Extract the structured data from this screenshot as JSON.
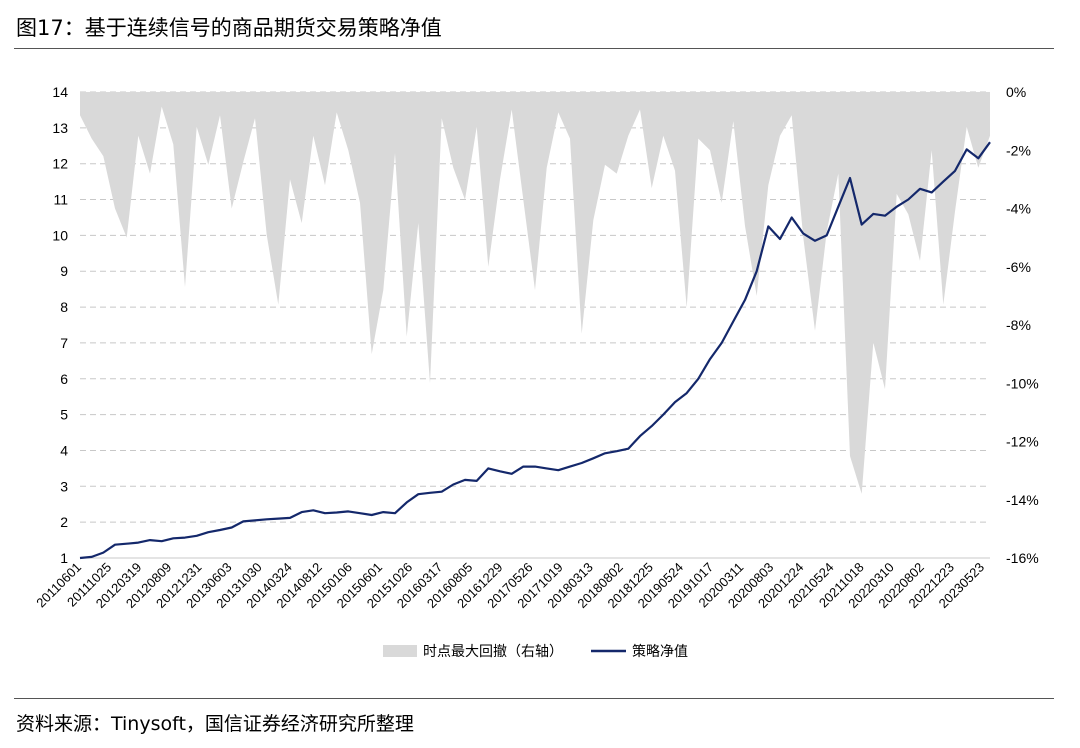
{
  "figure": {
    "title": "图17：基于连续信号的商品期货交易策略净值",
    "source": "资料来源：Tinysoft，国信证券经济研究所整理"
  },
  "chart_data": {
    "type": "line",
    "x_tick_labels": [
      "20110601",
      "20111025",
      "20120319",
      "20120809",
      "20121231",
      "20130603",
      "20131030",
      "20140324",
      "20140812",
      "20150106",
      "20150601",
      "20151026",
      "20160317",
      "20160805",
      "20161229",
      "20170526",
      "20171019",
      "20180313",
      "20180802",
      "20181225",
      "20190524",
      "20191017",
      "20200311",
      "20200803",
      "20201224",
      "20210524",
      "20211018",
      "20220310",
      "20220802",
      "20221223",
      "20230523"
    ],
    "left_axis": {
      "min": 1,
      "max": 14,
      "ticks": [
        "1",
        "2",
        "3",
        "4",
        "5",
        "6",
        "7",
        "8",
        "9",
        "10",
        "11",
        "12",
        "13",
        "14"
      ]
    },
    "right_axis": {
      "min": -16,
      "max": 0,
      "ticks": [
        "0%",
        "-2%",
        "-4%",
        "-6%",
        "-8%",
        "-10%",
        "-12%",
        "-14%",
        "-16%"
      ]
    },
    "grid": true,
    "legend_position": "bottom",
    "colors": {
      "line": "#14286b",
      "area": "#d9d9d9",
      "grid": "#c8c8c8"
    },
    "series": [
      {
        "name": "时点最大回撤（右轴）",
        "type": "area",
        "axis": "right",
        "values": [
          -0.8,
          -1.6,
          -2.2,
          -4.0,
          -5.0,
          -1.5,
          -2.8,
          -0.5,
          -1.8,
          -6.7,
          -1.2,
          -2.5,
          -0.8,
          -4.0,
          -2.4,
          -0.9,
          -4.9,
          -7.3,
          -3.0,
          -4.5,
          -1.5,
          -3.2,
          -0.7,
          -2.0,
          -3.8,
          -9.0,
          -6.8,
          -2.1,
          -8.4,
          -4.5,
          -10.0,
          -0.9,
          -2.6,
          -3.7,
          -1.2,
          -6.0,
          -3.0,
          -0.6,
          -3.7,
          -6.8,
          -2.6,
          -0.7,
          -1.6,
          -8.3,
          -4.4,
          -2.5,
          -2.8,
          -1.5,
          -0.6,
          -3.3,
          -1.5,
          -2.7,
          -7.4,
          -1.6,
          -2.0,
          -3.8,
          -1.0,
          -4.6,
          -7.0,
          -3.2,
          -1.5,
          -0.8,
          -5.0,
          -8.2,
          -4.8,
          -2.8,
          -12.5,
          -13.8,
          -8.6,
          -10.2,
          -3.5,
          -4.2,
          -5.8,
          -2.0,
          -7.3,
          -4.1,
          -1.2,
          -2.6,
          -1.5
        ]
      },
      {
        "name": "策略净值",
        "type": "line",
        "axis": "left",
        "values": [
          1.0,
          1.03,
          1.15,
          1.37,
          1.4,
          1.43,
          1.5,
          1.47,
          1.55,
          1.57,
          1.62,
          1.72,
          1.78,
          1.85,
          2.02,
          2.05,
          2.08,
          2.1,
          2.12,
          2.28,
          2.33,
          2.25,
          2.27,
          2.3,
          2.25,
          2.2,
          2.28,
          2.25,
          2.55,
          2.78,
          2.82,
          2.85,
          3.05,
          3.18,
          3.15,
          3.5,
          3.42,
          3.35,
          3.55,
          3.55,
          3.5,
          3.45,
          3.55,
          3.65,
          3.78,
          3.92,
          3.98,
          4.05,
          4.4,
          4.68,
          5.0,
          5.35,
          5.6,
          6.0,
          6.55,
          7.0,
          7.6,
          8.2,
          9.0,
          10.25,
          9.9,
          10.5,
          10.05,
          9.85,
          10.0,
          10.8,
          11.6,
          10.3,
          10.6,
          10.55,
          10.8,
          11.0,
          11.3,
          11.2,
          11.5,
          11.8,
          12.4,
          12.15,
          12.6
        ]
      }
    ]
  }
}
